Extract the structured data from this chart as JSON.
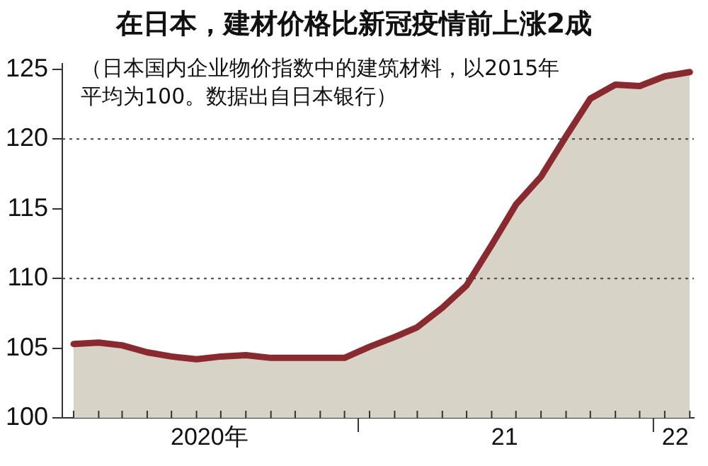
{
  "chart_data": {
    "type": "area",
    "title": "在日本，建材价格比新冠疫情前上涨2成",
    "subtitle": "（日本国内企业物价指数中的建筑材料，以2015年平均为100。数据出自日本银行）",
    "x": [
      "2020-01-15",
      "2020-02-15",
      "2020-03-15",
      "2020-04-15",
      "2020-05-15",
      "2020-06-15",
      "2020-07-15",
      "2020-08-15",
      "2020-09-15",
      "2020-10-15",
      "2020-11-15",
      "2020-12-15",
      "2021-01-15",
      "2021-02-15",
      "2021-03-15",
      "2021-04-15",
      "2021-05-15",
      "2021-06-15",
      "2021-07-15",
      "2021-08-15",
      "2021-09-15",
      "2021-10-15",
      "2021-11-15",
      "2021-12-15",
      "2022-01-15",
      "2022-02-15"
    ],
    "series": [
      {
        "color": "#8b2a2e",
        "values": [
          105.3,
          105.4,
          105.2,
          104.7,
          104.4,
          104.2,
          104.4,
          104.5,
          104.3,
          104.3,
          104.3,
          104.3,
          105.1,
          105.8,
          106.5,
          107.9,
          109.5,
          112.4,
          115.3,
          117.3,
          120.2,
          122.9,
          123.9,
          123.8,
          124.5,
          124.8
        ]
      }
    ],
    "xlim": [
      "2020-01-01",
      "2022-02-20"
    ],
    "xticks": [
      {
        "value": "2020-07-01",
        "label": "2020年"
      },
      {
        "value": "2021-01-01",
        "label": null
      },
      {
        "value": "2021-07-01",
        "label": "21"
      },
      {
        "value": "2022-01-01",
        "label": null
      },
      {
        "value": "2022-01-28",
        "label": "22"
      }
    ],
    "ylim": [
      100,
      125.4
    ],
    "yticks": [
      100,
      105,
      110,
      115,
      120,
      125
    ],
    "ref_lines": [
      {
        "axis": "y",
        "value": 110,
        "color": "#444444",
        "line_style": "dotted"
      },
      {
        "axis": "y",
        "value": 120,
        "color": "#444444",
        "line_style": "dotted"
      }
    ],
    "grid": false,
    "legend": false,
    "marker": "none"
  }
}
